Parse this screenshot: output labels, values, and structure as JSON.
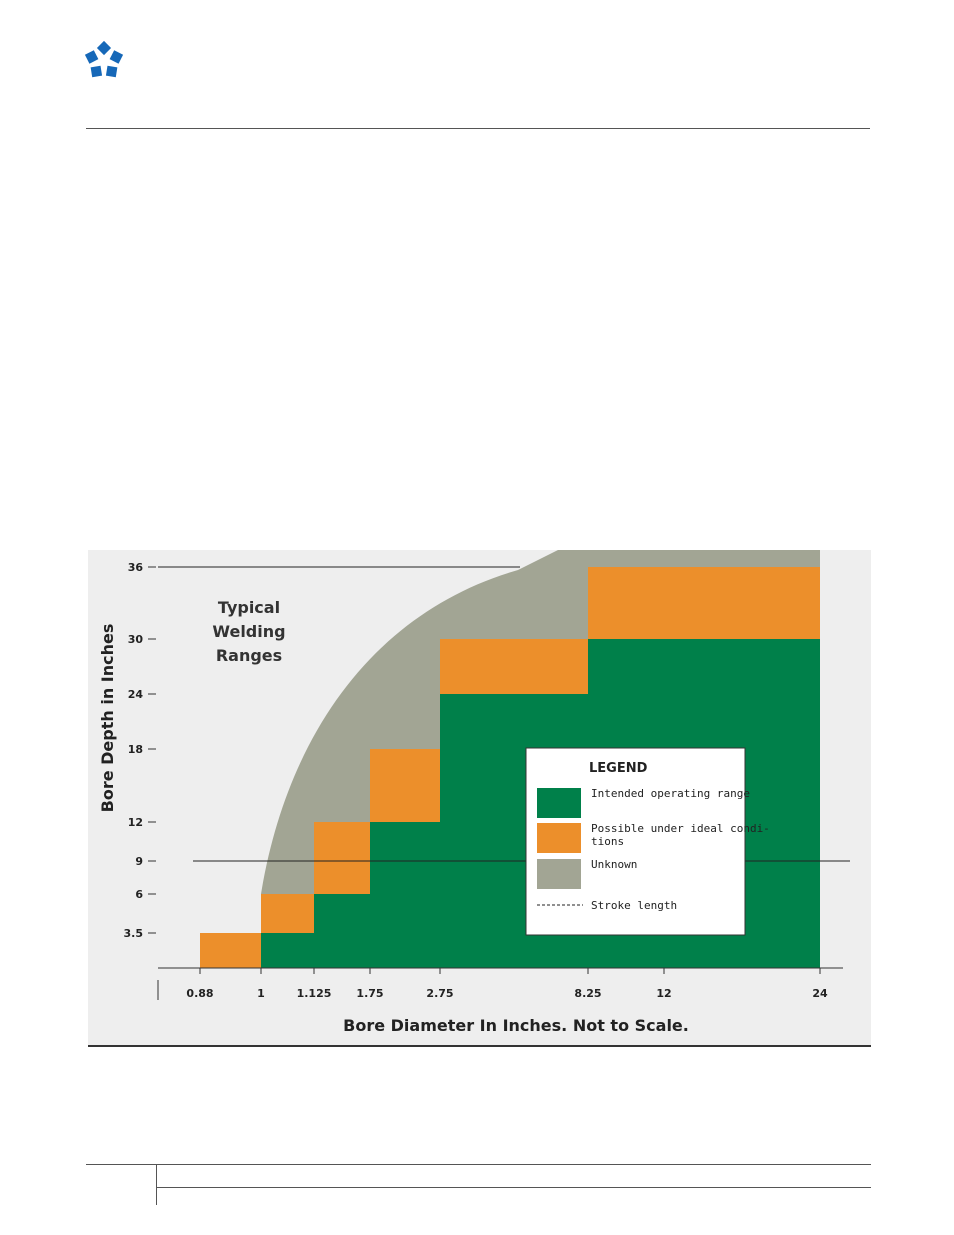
{
  "colors": {
    "intended": "#00804a",
    "possible": "#ec8f2b",
    "unknown": "#a2a594",
    "logo": "#1668b8"
  },
  "header": {
    "logo_icon": "star-cluster-logo-icon"
  },
  "chart_data": {
    "type": "area",
    "title": [
      "Typical",
      "Welding",
      "Ranges"
    ],
    "xlabel": "Bore Diameter In Inches.   Not to Scale.",
    "ylabel": "Bore Depth in Inches",
    "x_ticks": [
      "0.88",
      "1",
      "1.125",
      "1.75",
      "2.75",
      "8.25",
      "12",
      "24"
    ],
    "y_ticks": [
      "3.5",
      "6",
      "9",
      "12",
      "18",
      "24",
      "30",
      "36"
    ],
    "x_scale": "categorical (not to scale)",
    "y_scale": "categorical (not to scale)",
    "series": [
      {
        "name": "Intended operating range",
        "color_key": "intended",
        "steps": [
          {
            "x_from": "1",
            "x_to": "1.125",
            "max_depth": 3.5
          },
          {
            "x_from": "1.125",
            "x_to": "1.75",
            "max_depth": 6
          },
          {
            "x_from": "1.75",
            "x_to": "2.75",
            "max_depth": 12
          },
          {
            "x_from": "2.75",
            "x_to": "8.25",
            "max_depth": 24
          },
          {
            "x_from": "8.25",
            "x_to": "24",
            "max_depth": 30
          }
        ]
      },
      {
        "name": "Possible under ideal conditions",
        "color_key": "possible",
        "steps": [
          {
            "x_from": "0.88",
            "x_to": "1",
            "min_depth": 0,
            "max_depth": 3.5
          },
          {
            "x_from": "1",
            "x_to": "1.125",
            "min_depth": 3.5,
            "max_depth": 6
          },
          {
            "x_from": "1.125",
            "x_to": "1.75",
            "min_depth": 6,
            "max_depth": 12
          },
          {
            "x_from": "1.75",
            "x_to": "2.75",
            "min_depth": 12,
            "max_depth": 18
          },
          {
            "x_from": "2.75",
            "x_to": "8.25",
            "min_depth": 24,
            "max_depth": 30
          },
          {
            "x_from": "8.25",
            "x_to": "24",
            "min_depth": 30,
            "max_depth": 36
          }
        ]
      },
      {
        "name": "Unknown",
        "color_key": "unknown",
        "region": "curved band above possible range, from x=1 at depth 6 rising to beyond 36 at x≈8.25"
      }
    ],
    "reference_lines": [
      {
        "name": "Stroke length",
        "orientation": "horizontal",
        "y": 9,
        "style": "solid"
      },
      {
        "name": "top reference",
        "orientation": "horizontal",
        "y": 36,
        "style": "solid"
      }
    ],
    "legend": {
      "title": "LEGEND",
      "position": "center-right",
      "items": [
        {
          "label": "Intended operating range",
          "color_key": "intended",
          "type": "swatch"
        },
        {
          "label": "Possible under ideal condi-\ntions",
          "color_key": "possible",
          "type": "swatch"
        },
        {
          "label": "Unknown",
          "color_key": "unknown",
          "type": "swatch"
        },
        {
          "label": "Stroke length",
          "type": "dashed-line"
        }
      ]
    }
  }
}
